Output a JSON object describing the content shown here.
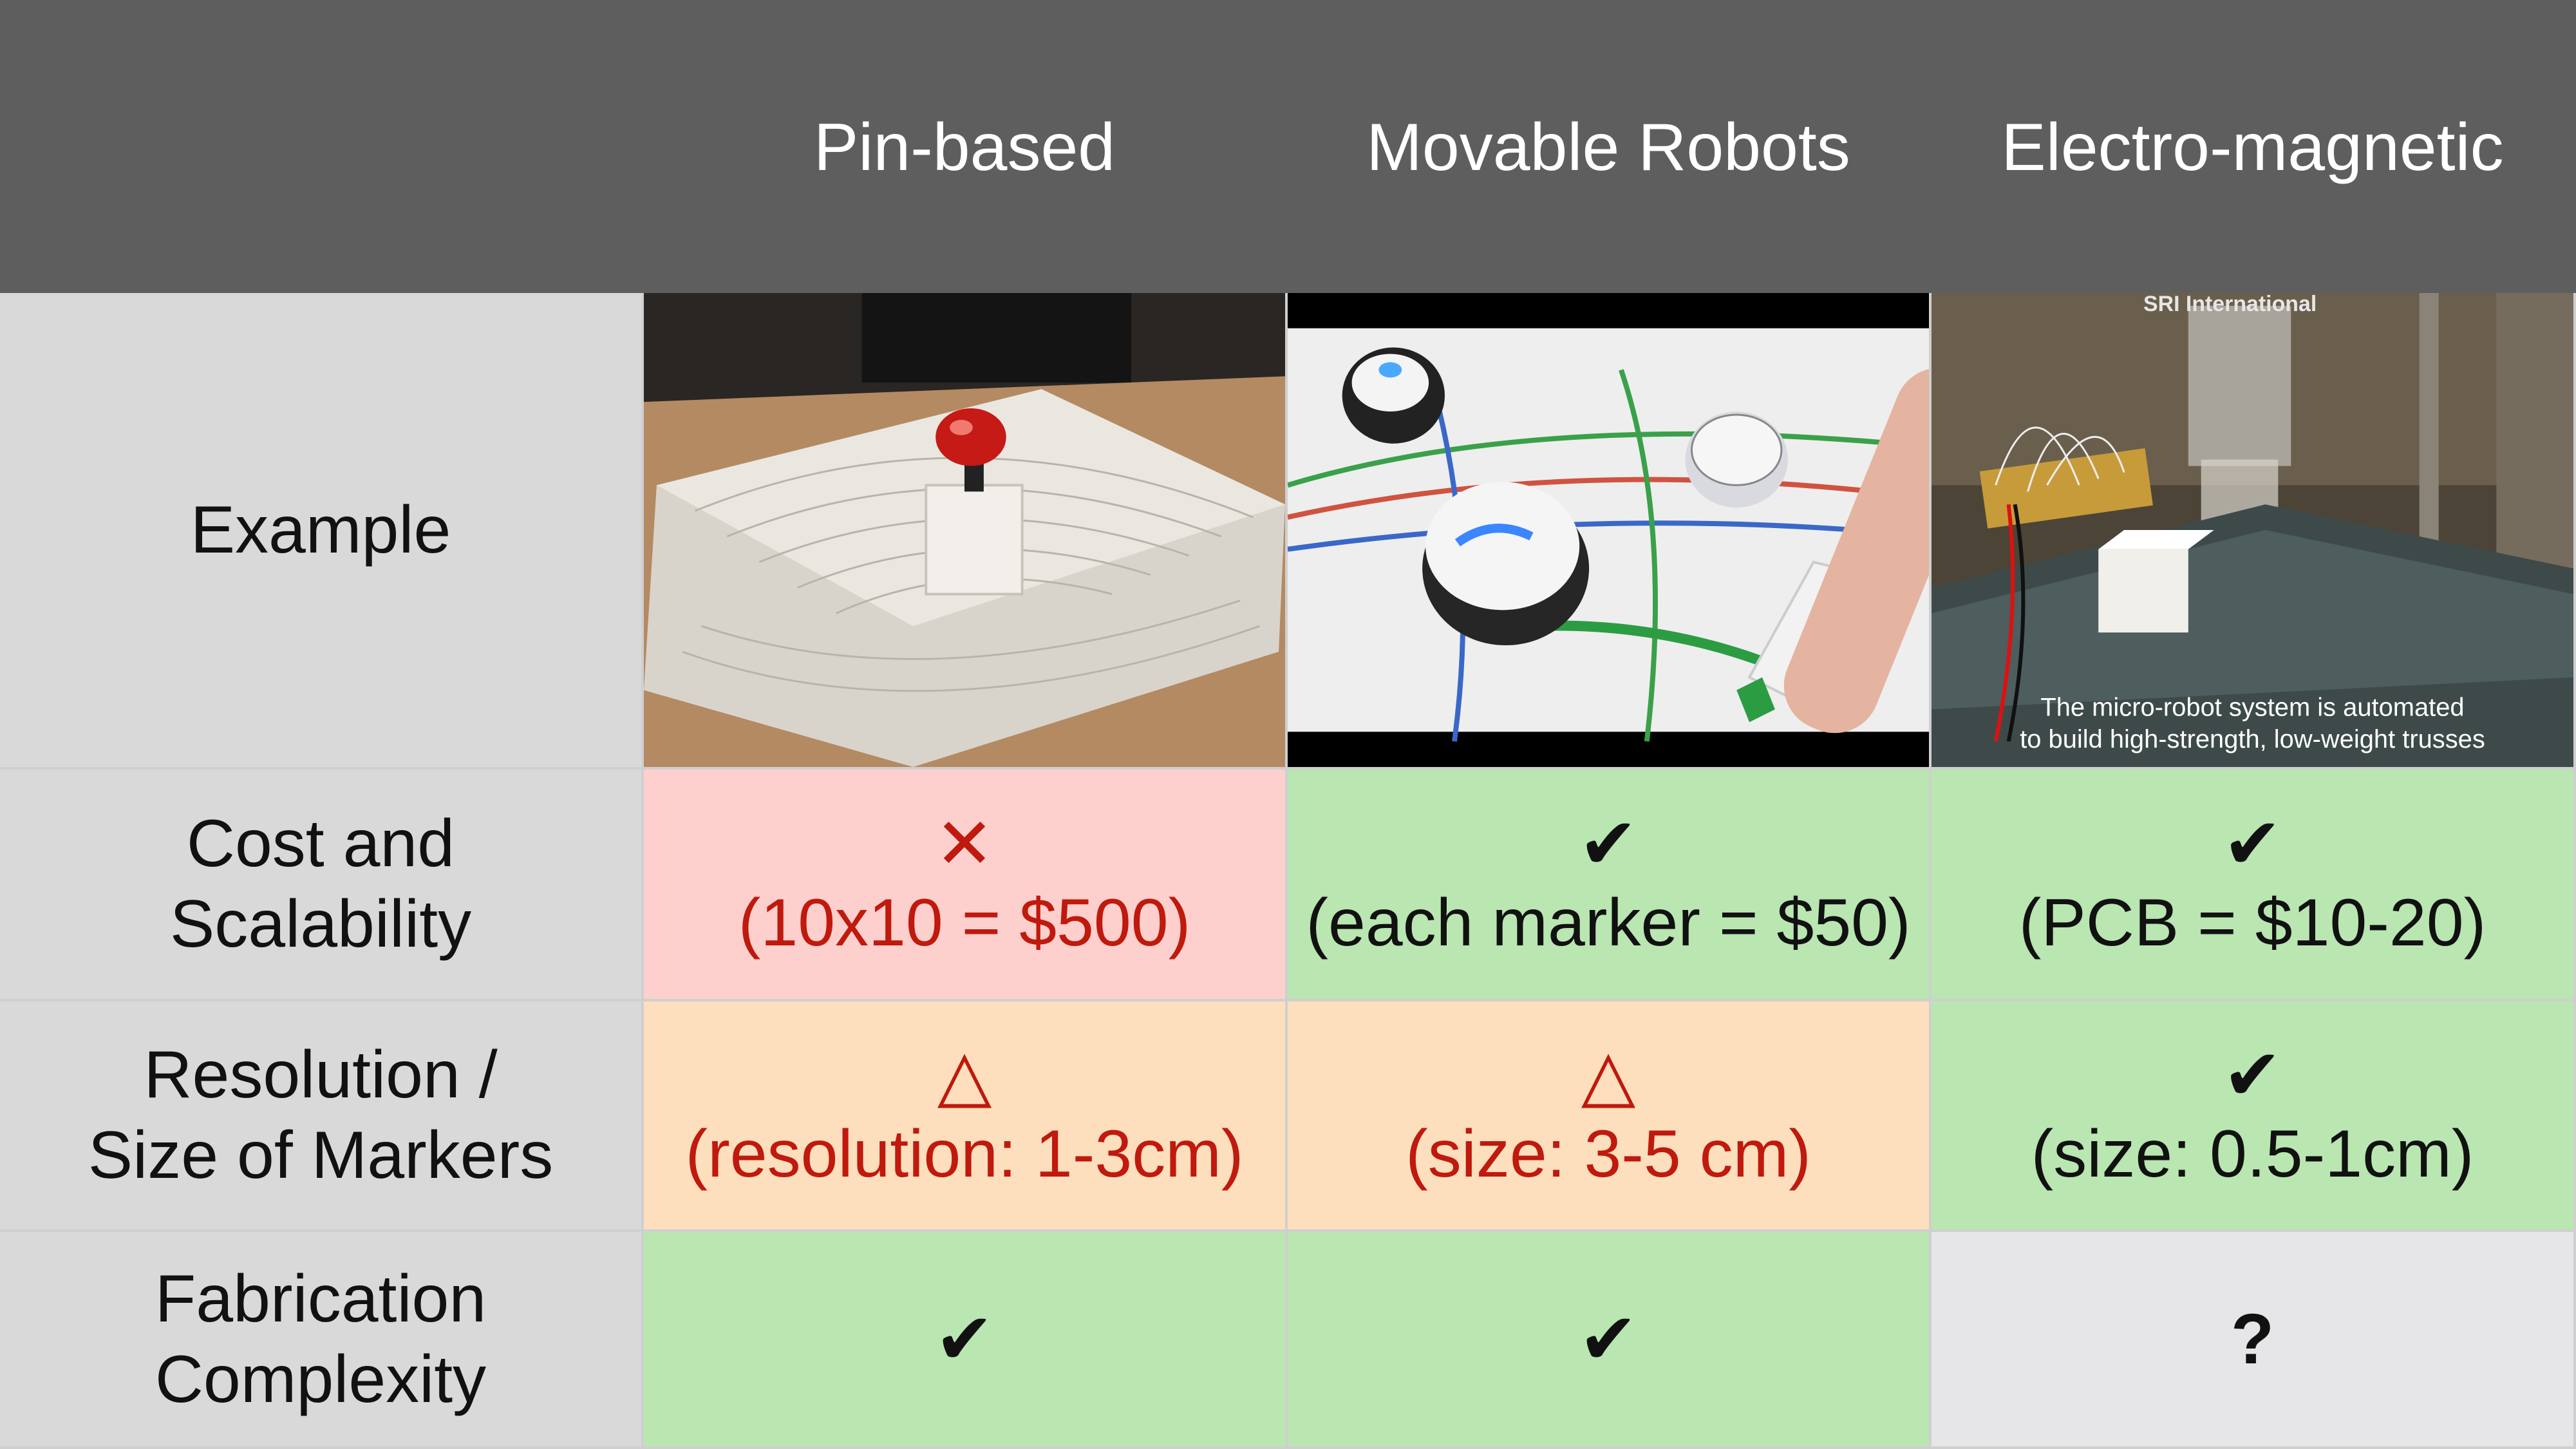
{
  "header": {
    "columns": [
      "Pin-based",
      "Movable Robots",
      "Electro-magnetic"
    ]
  },
  "rows": {
    "example": {
      "label": "Example"
    },
    "cost": {
      "label_lines": [
        "Cost and",
        "Scalability"
      ],
      "cells": [
        {
          "mark": "✕",
          "text": "(10x10 = $500)"
        },
        {
          "mark": "✔",
          "text": "(each marker = $50)"
        },
        {
          "mark": "✔",
          "text": "(PCB = $10-20)"
        }
      ]
    },
    "resolution": {
      "label_lines": [
        "Resolution /",
        "Size of Markers"
      ],
      "cells": [
        {
          "mark": "△",
          "text": "(resolution: 1-3cm)"
        },
        {
          "mark": "△",
          "text": "(size: 3-5 cm)"
        },
        {
          "mark": "✔",
          "text": "(size: 0.5-1cm)"
        }
      ]
    },
    "fabrication": {
      "label_lines": [
        "Fabrication",
        "Complexity"
      ],
      "cells": [
        {
          "mark": "✔"
        },
        {
          "mark": "✔"
        },
        {
          "mark": "?"
        }
      ]
    }
  },
  "photo_text": {
    "sri_watermark": "SRI International",
    "caption_line1": "The micro-robot system is automated",
    "caption_line2": "to build high-strength, low-weight trusses"
  },
  "colors": {
    "header_bg": "#5e5e5e",
    "label_bg": "#d9d9d9",
    "bad_bg": "#fdd0cd",
    "medium_bg": "#fddfbd",
    "good_bg": "#b9e6b1",
    "unknown_bg": "#e6e6e8",
    "warn_text": "#c0190d"
  }
}
